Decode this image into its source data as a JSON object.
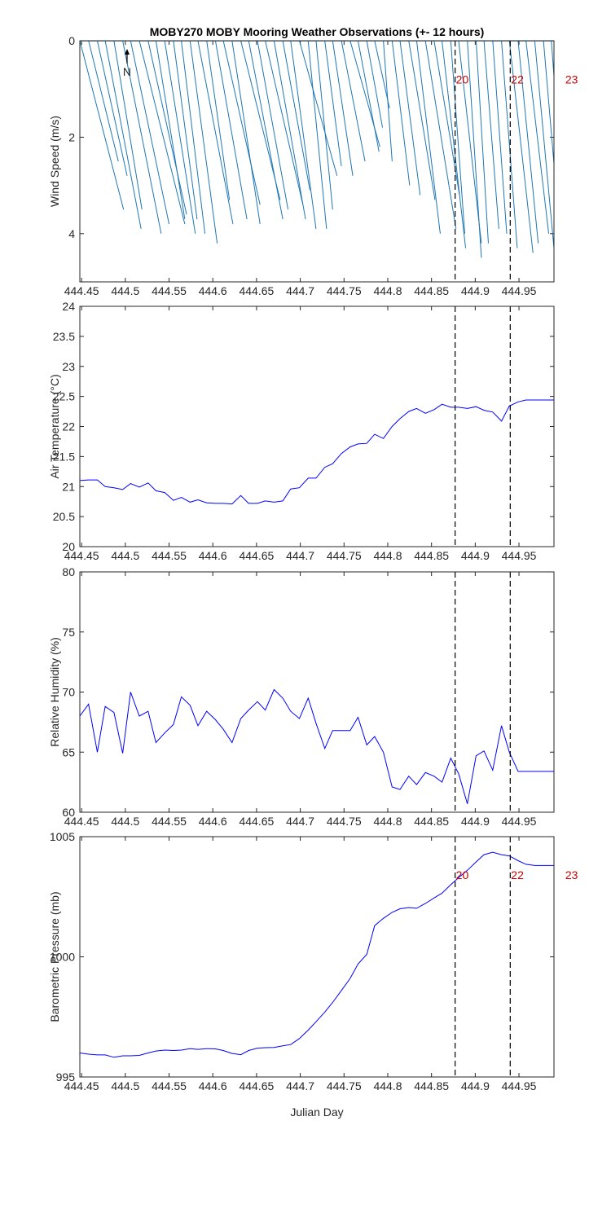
{
  "title": "MOBY270 MOBY Mooring Weather Observations (+- 12 hours)",
  "colors": {
    "wind": "#1f77b4",
    "line": "#0000ff",
    "marker_line": "#000000",
    "marker_label": "#cc0000",
    "axis": "#262626"
  },
  "chart_data": [
    {
      "type": "quiver",
      "id": "wind",
      "ylabel": "Wind Speed (m/s)",
      "xlim": [
        444.448,
        444.99
      ],
      "ylim": [
        0,
        5
      ],
      "y_reversed": true,
      "xticks": [
        444.45,
        444.5,
        444.55,
        444.6,
        444.65,
        444.7,
        444.75,
        444.8,
        444.85,
        444.9,
        444.95
      ],
      "yticks": [
        0,
        2,
        4
      ],
      "north_label": "N",
      "north_x": 444.502,
      "vectors": [
        {
          "x": 444.448,
          "dx": 0.05,
          "speed": 3.5
        },
        {
          "x": 444.458,
          "dx": 0.034,
          "speed": 2.5
        },
        {
          "x": 444.468,
          "dx": 0.034,
          "speed": 2.8
        },
        {
          "x": 444.477,
          "dx": 0.041,
          "speed": 3.9
        },
        {
          "x": 444.487,
          "dx": 0.032,
          "speed": 3.5
        },
        {
          "x": 444.497,
          "dx": 0.044,
          "speed": 4.0
        },
        {
          "x": 444.506,
          "dx": 0.044,
          "speed": 3.8
        },
        {
          "x": 444.516,
          "dx": 0.052,
          "speed": 3.8
        },
        {
          "x": 444.526,
          "dx": 0.044,
          "speed": 3.6
        },
        {
          "x": 444.535,
          "dx": 0.033,
          "speed": 3.7
        },
        {
          "x": 444.545,
          "dx": 0.035,
          "speed": 4.0
        },
        {
          "x": 444.555,
          "dx": 0.027,
          "speed": 3.7
        },
        {
          "x": 444.564,
          "dx": 0.027,
          "speed": 4.0
        },
        {
          "x": 444.574,
          "dx": 0.031,
          "speed": 4.2
        },
        {
          "x": 444.583,
          "dx": 0.04,
          "speed": 3.8
        },
        {
          "x": 444.593,
          "dx": 0.026,
          "speed": 3.3
        },
        {
          "x": 444.603,
          "dx": 0.036,
          "speed": 3.7
        },
        {
          "x": 444.612,
          "dx": 0.042,
          "speed": 3.4
        },
        {
          "x": 444.622,
          "dx": 0.032,
          "speed": 3.8
        },
        {
          "x": 444.632,
          "dx": 0.045,
          "speed": 3.3
        },
        {
          "x": 444.641,
          "dx": 0.039,
          "speed": 3.7
        },
        {
          "x": 444.651,
          "dx": 0.035,
          "speed": 3.5
        },
        {
          "x": 444.66,
          "dx": 0.043,
          "speed": 3.4
        },
        {
          "x": 444.67,
          "dx": 0.036,
          "speed": 3.7
        },
        {
          "x": 444.68,
          "dx": 0.031,
          "speed": 3.1
        },
        {
          "x": 444.689,
          "dx": 0.029,
          "speed": 3.9
        },
        {
          "x": 444.699,
          "dx": 0.043,
          "speed": 2.8
        },
        {
          "x": 444.709,
          "dx": 0.021,
          "speed": 3.9
        },
        {
          "x": 444.718,
          "dx": 0.019,
          "speed": 3.5
        },
        {
          "x": 444.728,
          "dx": 0.019,
          "speed": 2.6
        },
        {
          "x": 444.737,
          "dx": 0.023,
          "speed": 2.8
        },
        {
          "x": 444.747,
          "dx": 0.027,
          "speed": 2.5
        },
        {
          "x": 444.757,
          "dx": 0.034,
          "speed": 2.2
        },
        {
          "x": 444.766,
          "dx": 0.024,
          "speed": 2.3
        },
        {
          "x": 444.776,
          "dx": 0.018,
          "speed": 1.8
        },
        {
          "x": 444.785,
          "dx": 0.017,
          "speed": 1.4
        },
        {
          "x": 444.795,
          "dx": 0.01,
          "speed": 2.5
        },
        {
          "x": 444.805,
          "dx": 0.02,
          "speed": 3.0
        },
        {
          "x": 444.814,
          "dx": 0.023,
          "speed": 3.2
        },
        {
          "x": 444.824,
          "dx": 0.03,
          "speed": 3.3
        },
        {
          "x": 444.833,
          "dx": 0.027,
          "speed": 4.0
        },
        {
          "x": 444.843,
          "dx": 0.035,
          "speed": 3.9
        },
        {
          "x": 444.853,
          "dx": 0.029,
          "speed": 3.2
        },
        {
          "x": 444.862,
          "dx": 0.027,
          "speed": 4.3
        },
        {
          "x": 444.872,
          "dx": 0.016,
          "speed": 4.0
        },
        {
          "x": 444.881,
          "dx": 0.026,
          "speed": 4.2
        },
        {
          "x": 444.891,
          "dx": 0.016,
          "speed": 4.5
        },
        {
          "x": 444.901,
          "dx": 0.014,
          "speed": 4.2
        },
        {
          "x": 444.91,
          "dx": 0.017,
          "speed": 3.9
        },
        {
          "x": 444.92,
          "dx": 0.016,
          "speed": 4.0
        },
        {
          "x": 444.93,
          "dx": 0.018,
          "speed": 4.3
        },
        {
          "x": 444.939,
          "dx": 0.027,
          "speed": 4.4
        },
        {
          "x": 444.949,
          "dx": 0.023,
          "speed": 4.2
        },
        {
          "x": 444.958,
          "dx": 0.026,
          "speed": 4.0
        },
        {
          "x": 444.968,
          "dx": 0.022,
          "speed": 4.3
        },
        {
          "x": 444.978,
          "dx": 0.016,
          "speed": 3.4
        },
        {
          "x": 444.987,
          "dx": 0.013,
          "speed": 3.2
        }
      ],
      "markers": [
        {
          "x": 444.877,
          "label": "20",
          "label_y": 0.8
        },
        {
          "x": 444.94,
          "label": "22",
          "label_y": 0.8
        },
        {
          "x": 445.002,
          "label": "23",
          "label_y": 0.8
        }
      ]
    },
    {
      "type": "line",
      "id": "temp",
      "ylabel": "Air Temperature (°C)",
      "xlim": [
        444.448,
        444.99
      ],
      "ylim": [
        20,
        24
      ],
      "xticks": [
        444.45,
        444.5,
        444.55,
        444.6,
        444.65,
        444.7,
        444.75,
        444.8,
        444.85,
        444.9,
        444.95
      ],
      "yticks": [
        20,
        20.5,
        21,
        21.5,
        22,
        22.5,
        23,
        23.5,
        24
      ],
      "x": [
        444.448,
        444.458,
        444.468,
        444.477,
        444.487,
        444.497,
        444.506,
        444.516,
        444.526,
        444.535,
        444.545,
        444.555,
        444.564,
        444.574,
        444.583,
        444.593,
        444.603,
        444.612,
        444.622,
        444.632,
        444.641,
        444.651,
        444.66,
        444.67,
        444.68,
        444.689,
        444.699,
        444.709,
        444.718,
        444.728,
        444.737,
        444.747,
        444.757,
        444.766,
        444.776,
        444.785,
        444.795,
        444.805,
        444.814,
        444.824,
        444.833,
        444.843,
        444.853,
        444.862,
        444.872,
        444.881,
        444.891,
        444.901,
        444.91,
        444.92,
        444.93,
        444.939,
        444.949,
        444.958,
        444.968,
        444.978,
        444.987,
        444.99
      ],
      "y": [
        21.1,
        21.11,
        21.11,
        21.0,
        20.98,
        20.95,
        21.05,
        20.99,
        21.06,
        20.93,
        20.9,
        20.77,
        20.82,
        20.74,
        20.78,
        20.73,
        20.72,
        20.72,
        20.71,
        20.85,
        20.72,
        20.72,
        20.76,
        20.74,
        20.76,
        20.96,
        20.98,
        21.14,
        21.14,
        21.32,
        21.38,
        21.55,
        21.66,
        21.71,
        21.72,
        21.87,
        21.8,
        22.0,
        22.13,
        22.25,
        22.3,
        22.22,
        22.28,
        22.37,
        22.32,
        22.32,
        22.3,
        22.33,
        22.27,
        22.24,
        22.09,
        22.34,
        22.41,
        22.44,
        22.44,
        22.44,
        22.44,
        22.44
      ]
    },
    {
      "type": "line",
      "id": "humidity",
      "ylabel": "Relative Humidity (%)",
      "xlim": [
        444.448,
        444.99
      ],
      "ylim": [
        60,
        80
      ],
      "xticks": [
        444.45,
        444.5,
        444.55,
        444.6,
        444.65,
        444.7,
        444.75,
        444.8,
        444.85,
        444.9,
        444.95
      ],
      "yticks": [
        60,
        65,
        70,
        75,
        80
      ],
      "x": [
        444.448,
        444.458,
        444.468,
        444.477,
        444.487,
        444.497,
        444.506,
        444.516,
        444.526,
        444.535,
        444.545,
        444.555,
        444.564,
        444.574,
        444.583,
        444.593,
        444.603,
        444.612,
        444.622,
        444.632,
        444.641,
        444.651,
        444.66,
        444.67,
        444.68,
        444.689,
        444.699,
        444.709,
        444.718,
        444.728,
        444.737,
        444.747,
        444.757,
        444.766,
        444.776,
        444.785,
        444.795,
        444.805,
        444.814,
        444.824,
        444.833,
        444.843,
        444.853,
        444.862,
        444.872,
        444.881,
        444.891,
        444.901,
        444.91,
        444.92,
        444.93,
        444.939,
        444.949,
        444.958,
        444.968,
        444.978,
        444.987,
        444.99
      ],
      "y": [
        68.0,
        69.0,
        65.0,
        68.8,
        68.3,
        64.9,
        70.0,
        68.0,
        68.4,
        65.8,
        66.6,
        67.3,
        69.6,
        68.9,
        67.2,
        68.4,
        67.7,
        66.9,
        65.8,
        67.8,
        68.5,
        69.2,
        68.5,
        70.2,
        69.5,
        68.4,
        67.8,
        69.5,
        67.4,
        65.3,
        66.8,
        66.8,
        66.8,
        67.9,
        65.6,
        66.3,
        65.0,
        62.1,
        61.9,
        63.0,
        62.3,
        63.3,
        63.0,
        62.5,
        64.5,
        63.2,
        60.7,
        64.7,
        65.1,
        63.5,
        67.2,
        65.0,
        63.4,
        63.4,
        63.4,
        63.4,
        63.4,
        63.4
      ]
    },
    {
      "type": "line",
      "id": "pressure",
      "ylabel": "Barometric Pressure (mb)",
      "xlabel": "Julian Day",
      "xlim": [
        444.448,
        444.99
      ],
      "ylim": [
        995,
        1005
      ],
      "xticks": [
        444.45,
        444.5,
        444.55,
        444.6,
        444.65,
        444.7,
        444.75,
        444.8,
        444.85,
        444.9,
        444.95
      ],
      "yticks": [
        995,
        1000,
        1005
      ],
      "x": [
        444.448,
        444.458,
        444.468,
        444.477,
        444.487,
        444.497,
        444.506,
        444.516,
        444.526,
        444.535,
        444.545,
        444.555,
        444.564,
        444.574,
        444.583,
        444.593,
        444.603,
        444.612,
        444.622,
        444.632,
        444.641,
        444.651,
        444.66,
        444.67,
        444.68,
        444.689,
        444.699,
        444.709,
        444.718,
        444.728,
        444.737,
        444.747,
        444.757,
        444.766,
        444.776,
        444.785,
        444.795,
        444.805,
        444.814,
        444.824,
        444.833,
        444.843,
        444.853,
        444.862,
        444.872,
        444.881,
        444.891,
        444.901,
        444.91,
        444.92,
        444.93,
        444.939,
        444.949,
        444.958,
        444.968,
        444.978,
        444.987,
        444.99
      ],
      "y": [
        996.0,
        995.95,
        995.92,
        995.92,
        995.82,
        995.88,
        995.88,
        995.9,
        996.0,
        996.08,
        996.12,
        996.1,
        996.12,
        996.18,
        996.15,
        996.18,
        996.17,
        996.1,
        995.98,
        995.93,
        996.1,
        996.2,
        996.22,
        996.23,
        996.3,
        996.35,
        996.6,
        996.95,
        997.3,
        997.7,
        998.1,
        998.6,
        999.1,
        999.7,
        1000.1,
        1001.3,
        1001.6,
        1001.85,
        1002.0,
        1002.05,
        1002.02,
        1002.22,
        1002.45,
        1002.65,
        1003.0,
        1003.3,
        1003.6,
        1003.95,
        1004.25,
        1004.35,
        1004.25,
        1004.2,
        1004.0,
        1003.85,
        1003.8,
        1003.8,
        1003.8,
        1003.8
      ],
      "markers": [
        {
          "x": 444.877,
          "label": "20",
          "label_y": 1003.4
        },
        {
          "x": 444.94,
          "label": "22",
          "label_y": 1003.4
        },
        {
          "x": 445.002,
          "label": "23",
          "label_y": 1003.4
        }
      ]
    }
  ],
  "day_lines": [
    444.877,
    444.94
  ]
}
